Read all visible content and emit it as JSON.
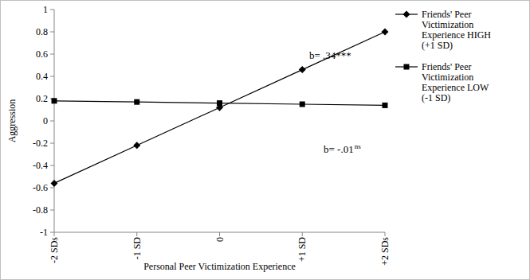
{
  "chart_data": {
    "type": "line",
    "x_label": "Personal Peer Victimization Experience",
    "y_label": "Aggression",
    "categories": [
      "-2 SDs",
      "-1 SD",
      "0",
      "+1 SD",
      "+2 SDs"
    ],
    "series": [
      {
        "name": "Friends' Peer Victimization Experience HIGH (+1 SD)",
        "color": "#000000",
        "marker": "diamond",
        "line_style": "solid",
        "values": [
          -0.56,
          -0.22,
          0.12,
          0.46,
          0.8
        ]
      },
      {
        "name": "Friends' Peer Victimization Experience LOW (-1 SD)",
        "color": "#000000",
        "marker": "square",
        "line_style": "solid",
        "values": [
          0.18,
          0.17,
          0.16,
          0.15,
          0.14
        ]
      }
    ],
    "annotations": [
      {
        "text": "b= .34***"
      },
      {
        "text": "b= -.01",
        "superscript": "ns"
      }
    ],
    "ylim": [
      -1,
      1
    ],
    "yticks": [
      -1,
      -0.8,
      -0.6,
      -0.4,
      -0.2,
      0,
      0.2,
      0.4,
      0.6,
      0.8,
      1
    ],
    "grid": false,
    "legend": "right"
  }
}
